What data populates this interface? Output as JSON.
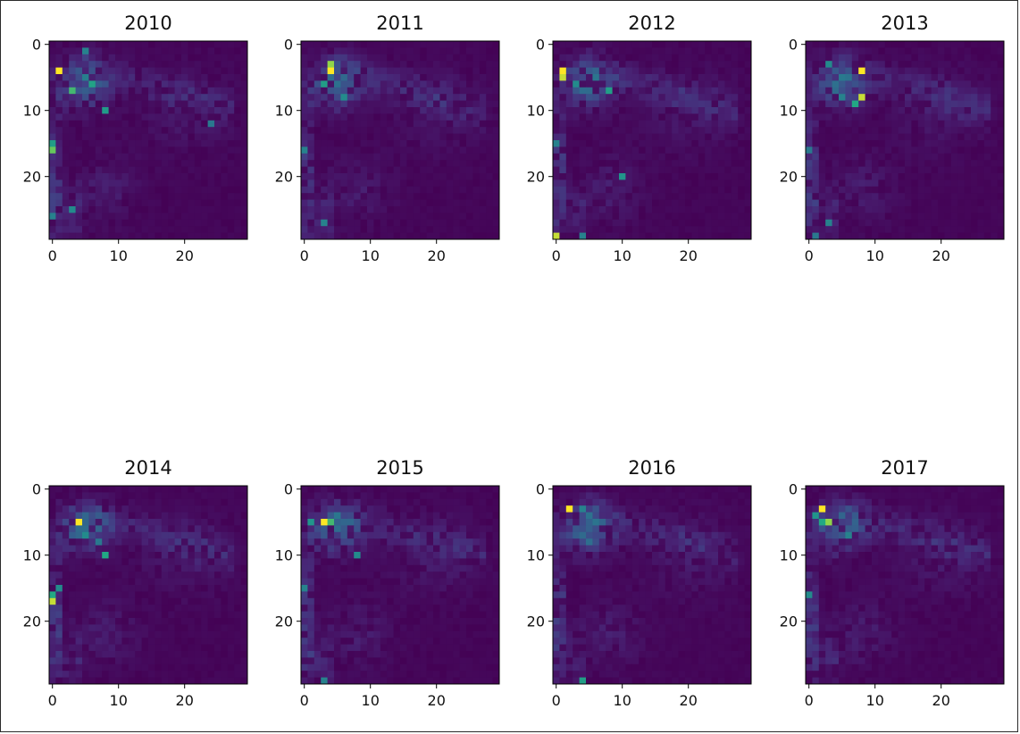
{
  "chart_data": {
    "type": "heatmap",
    "grid_size": 30,
    "colormap": "viridis",
    "xticks": [
      "0",
      "10",
      "20"
    ],
    "yticks": [
      "0",
      "10",
      "20"
    ],
    "xlim": [
      -0.5,
      29.5
    ],
    "ylim": [
      29.5,
      -0.5
    ],
    "panels": [
      {
        "title": "2010",
        "hotspots": [
          {
            "x": 1,
            "y": 4,
            "v": 1.0
          },
          {
            "x": 0,
            "y": 16,
            "v": 0.85
          },
          {
            "x": 0,
            "y": 15,
            "v": 0.7
          },
          {
            "x": 3,
            "y": 7,
            "v": 0.8
          },
          {
            "x": 6,
            "y": 6,
            "v": 0.72
          },
          {
            "x": 8,
            "y": 10,
            "v": 0.68
          },
          {
            "x": 5,
            "y": 1,
            "v": 0.55
          },
          {
            "x": 3,
            "y": 25,
            "v": 0.6
          },
          {
            "x": 0,
            "y": 26,
            "v": 0.55
          },
          {
            "x": 24,
            "y": 12,
            "v": 0.5
          }
        ]
      },
      {
        "title": "2011",
        "hotspots": [
          {
            "x": 4,
            "y": 4,
            "v": 1.0
          },
          {
            "x": 4,
            "y": 3,
            "v": 0.9
          },
          {
            "x": 3,
            "y": 6,
            "v": 0.7
          },
          {
            "x": 6,
            "y": 8,
            "v": 0.6
          },
          {
            "x": 0,
            "y": 16,
            "v": 0.55
          },
          {
            "x": 3,
            "y": 27,
            "v": 0.55
          }
        ]
      },
      {
        "title": "2012",
        "hotspots": [
          {
            "x": 1,
            "y": 4,
            "v": 1.0
          },
          {
            "x": 1,
            "y": 5,
            "v": 0.95
          },
          {
            "x": 0,
            "y": 29,
            "v": 0.95
          },
          {
            "x": 8,
            "y": 7,
            "v": 0.7
          },
          {
            "x": 10,
            "y": 20,
            "v": 0.65
          },
          {
            "x": 3,
            "y": 6,
            "v": 0.6
          },
          {
            "x": 0,
            "y": 15,
            "v": 0.55
          },
          {
            "x": 4,
            "y": 29,
            "v": 0.55
          }
        ]
      },
      {
        "title": "2013",
        "hotspots": [
          {
            "x": 8,
            "y": 4,
            "v": 1.0
          },
          {
            "x": 8,
            "y": 8,
            "v": 0.95
          },
          {
            "x": 7,
            "y": 9,
            "v": 0.75
          },
          {
            "x": 3,
            "y": 3,
            "v": 0.6
          },
          {
            "x": 5,
            "y": 8,
            "v": 0.55
          },
          {
            "x": 0,
            "y": 16,
            "v": 0.5
          },
          {
            "x": 3,
            "y": 27,
            "v": 0.55
          },
          {
            "x": 1,
            "y": 29,
            "v": 0.5
          }
        ]
      },
      {
        "title": "2014",
        "hotspots": [
          {
            "x": 4,
            "y": 5,
            "v": 1.0
          },
          {
            "x": 0,
            "y": 17,
            "v": 0.95
          },
          {
            "x": 0,
            "y": 16,
            "v": 0.75
          },
          {
            "x": 1,
            "y": 15,
            "v": 0.6
          },
          {
            "x": 8,
            "y": 10,
            "v": 0.75
          },
          {
            "x": 5,
            "y": 7,
            "v": 0.6
          },
          {
            "x": 7,
            "y": 8,
            "v": 0.5
          }
        ]
      },
      {
        "title": "2015",
        "hotspots": [
          {
            "x": 3,
            "y": 5,
            "v": 1.0
          },
          {
            "x": 4,
            "y": 5,
            "v": 0.8
          },
          {
            "x": 1,
            "y": 5,
            "v": 0.65
          },
          {
            "x": 8,
            "y": 10,
            "v": 0.6
          },
          {
            "x": 0,
            "y": 15,
            "v": 0.55
          },
          {
            "x": 3,
            "y": 29,
            "v": 0.55
          }
        ]
      },
      {
        "title": "2016",
        "hotspots": [
          {
            "x": 2,
            "y": 3,
            "v": 1.0
          },
          {
            "x": 4,
            "y": 29,
            "v": 0.7
          },
          {
            "x": 4,
            "y": 3,
            "v": 0.55
          },
          {
            "x": 5,
            "y": 8,
            "v": 0.45
          }
        ]
      },
      {
        "title": "2017",
        "hotspots": [
          {
            "x": 2,
            "y": 3,
            "v": 1.0
          },
          {
            "x": 3,
            "y": 5,
            "v": 0.9
          },
          {
            "x": 2,
            "y": 5,
            "v": 0.75
          },
          {
            "x": 1,
            "y": 4,
            "v": 0.65
          },
          {
            "x": 0,
            "y": 16,
            "v": 0.6
          },
          {
            "x": 6,
            "y": 7,
            "v": 0.55
          }
        ]
      }
    ]
  }
}
